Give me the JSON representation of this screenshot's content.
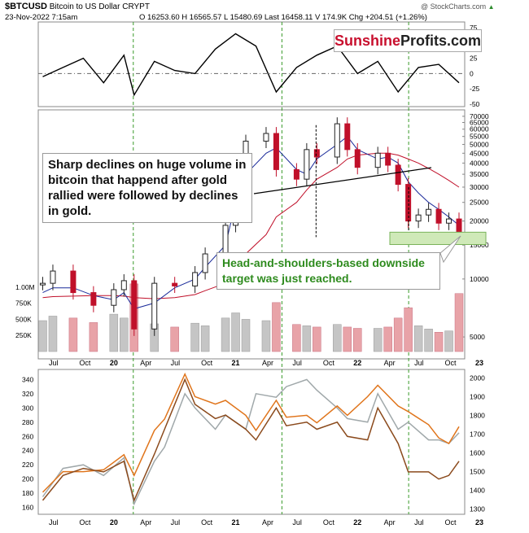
{
  "header": {
    "symbol": "$BTCUSD",
    "name": "Bitcoin to US Dollar",
    "exchange": "CRYPT",
    "date": "23-Nov-2022 7:15am",
    "quote": "O 16253.60  H 16565.57  L 15480.69  Last 16458.11  V 174.9K  Chg +204.51 (+1.26%)",
    "watermark": "@ StockCharts.com",
    "arrow": "▲"
  },
  "brand": {
    "part1": "Sunshine",
    "part2": "Profits.com",
    "color1": "#c8102e",
    "color2": "#222222"
  },
  "annotations": {
    "left_note": "Sharp declines on huge volume in bitcoin that happend after gold rallied were followed by declines in gold.",
    "right_note": "Head-and-shoulders-based downside target was just reached.",
    "right_note_color": "#2e8b1e"
  },
  "chart_data": [
    {
      "type": "line",
      "panel": "momentum oscillator",
      "yticks": [
        75,
        50,
        25,
        0,
        -25,
        -50
      ],
      "ylim": [
        -50,
        75
      ],
      "zero_line": true,
      "x": [
        "2019-06",
        "2019-08",
        "2019-10",
        "2019-12",
        "2020-02",
        "2020-03",
        "2020-05",
        "2020-07",
        "2020-09",
        "2020-11",
        "2021-01",
        "2021-03",
        "2021-05",
        "2021-07",
        "2021-09",
        "2021-11",
        "2022-01",
        "2022-03",
        "2022-05",
        "2022-07",
        "2022-09",
        "2022-11"
      ],
      "values": [
        -5,
        10,
        25,
        -15,
        30,
        -35,
        20,
        5,
        0,
        40,
        65,
        45,
        -30,
        10,
        30,
        45,
        0,
        20,
        -30,
        10,
        15,
        -15
      ]
    },
    {
      "type": "candlestick",
      "panel": "price",
      "title": "$BTCUSD",
      "scale": "log",
      "yticks": [
        70000,
        65000,
        60000,
        55000,
        50000,
        45000,
        40000,
        35000,
        30000,
        25000,
        20000,
        15000,
        10000,
        5000
      ],
      "volume_ticks": [
        "1.00M",
        "750K",
        "500K",
        "250K"
      ],
      "x_ticks": [
        "Jul",
        "Oct",
        "20",
        "Apr",
        "Jul",
        "Oct",
        "21",
        "Apr",
        "Jul",
        "Oct",
        "22",
        "Apr",
        "Jul",
        "Oct",
        "23"
      ],
      "x": [
        "2019-06",
        "2019-07",
        "2019-09",
        "2019-11",
        "2020-01",
        "2020-02",
        "2020-03",
        "2020-05",
        "2020-07",
        "2020-09",
        "2020-10",
        "2020-12",
        "2021-01",
        "2021-02",
        "2021-04",
        "2021-05",
        "2021-07",
        "2021-08",
        "2021-09",
        "2021-11",
        "2021-12",
        "2022-01",
        "2022-03",
        "2022-04",
        "2022-05",
        "2022-06",
        "2022-07",
        "2022-08",
        "2022-09",
        "2022-10",
        "2022-11"
      ],
      "close": [
        9500,
        11000,
        8500,
        7300,
        8800,
        9800,
        5500,
        9500,
        9200,
        10800,
        13500,
        19000,
        33000,
        52000,
        57000,
        37000,
        33000,
        47000,
        43000,
        64000,
        47000,
        38000,
        45000,
        39000,
        31000,
        20000,
        21500,
        23000,
        19500,
        20500,
        16458
      ],
      "ma_slow": [
        8000,
        8100,
        8150,
        8200,
        8200,
        8150,
        8000,
        7900,
        8000,
        8300,
        8700,
        9500,
        11000,
        13500,
        17000,
        21000,
        25000,
        29000,
        33000,
        38000,
        42000,
        44000,
        45000,
        45000,
        44000,
        42000,
        40000,
        37500,
        35000,
        32500,
        30000
      ],
      "ma_fast": [
        8500,
        9000,
        9000,
        8200,
        7800,
        8500,
        7000,
        7500,
        9000,
        10000,
        11500,
        15000,
        25000,
        35000,
        45000,
        48000,
        37000,
        35000,
        42000,
        50000,
        55000,
        47000,
        42000,
        43000,
        40000,
        32000,
        28000,
        25000,
        23000,
        21000,
        19000
      ],
      "volume_k": [
        480,
        550,
        520,
        450,
        580,
        520,
        1050,
        430,
        380,
        440,
        400,
        520,
        600,
        500,
        480,
        760,
        420,
        400,
        380,
        420,
        380,
        360,
        360,
        380,
        520,
        680,
        400,
        350,
        300,
        320,
        900
      ]
    },
    {
      "type": "line",
      "panel": "gold vs comparison",
      "yticks_left": [
        340,
        320,
        300,
        280,
        260,
        240,
        220,
        200,
        180,
        160
      ],
      "yticks_right": [
        2000,
        1900,
        1800,
        1700,
        1600,
        1500,
        1400,
        1300
      ],
      "x_ticks": [
        "Jul",
        "Oct",
        "20",
        "Apr",
        "Jul",
        "Oct",
        "21",
        "Apr",
        "Jul",
        "Oct",
        "22",
        "Apr",
        "Jul",
        "Oct",
        "23"
      ],
      "x": [
        "2019-06",
        "2019-08",
        "2019-10",
        "2019-12",
        "2020-02",
        "2020-03",
        "2020-05",
        "2020-06",
        "2020-08",
        "2020-09",
        "2020-11",
        "2020-12",
        "2021-02",
        "2021-03",
        "2021-05",
        "2021-06",
        "2021-08",
        "2021-09",
        "2021-11",
        "2021-12",
        "2022-02",
        "2022-03",
        "2022-05",
        "2022-06",
        "2022-08",
        "2022-09",
        "2022-10",
        "2022-11"
      ],
      "series": [
        {
          "color": "#a0a8aa",
          "values": [
            175,
            215,
            220,
            205,
            230,
            165,
            225,
            245,
            320,
            300,
            270,
            290,
            270,
            320,
            315,
            330,
            340,
            325,
            300,
            285,
            280,
            320,
            270,
            280,
            255,
            255,
            250,
            265
          ]
        },
        {
          "color": "#e0751c",
          "values": [
            1390,
            1500,
            1500,
            1510,
            1590,
            1480,
            1720,
            1780,
            2020,
            1900,
            1860,
            1880,
            1800,
            1720,
            1880,
            1790,
            1800,
            1760,
            1850,
            1800,
            1900,
            1960,
            1850,
            1820,
            1750,
            1680,
            1650,
            1740
          ]
        },
        {
          "color": "#8b4a1c",
          "values": [
            170,
            205,
            215,
            210,
            225,
            170,
            235,
            270,
            340,
            305,
            285,
            290,
            270,
            255,
            300,
            275,
            280,
            270,
            280,
            260,
            255,
            300,
            250,
            210,
            210,
            200,
            205,
            225
          ]
        }
      ]
    }
  ]
}
